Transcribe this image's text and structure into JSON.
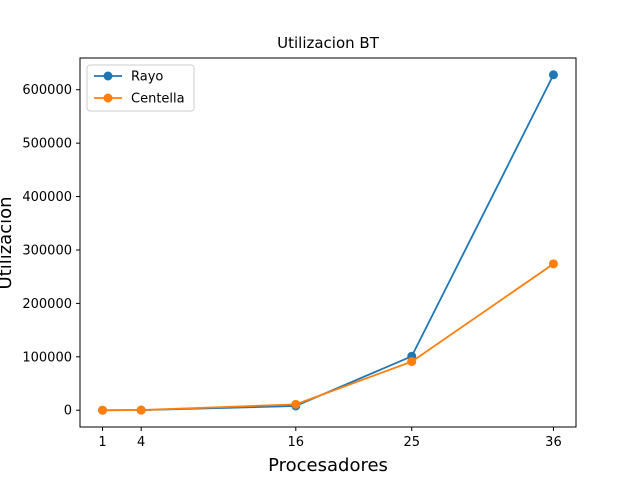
{
  "chart_data": {
    "type": "line",
    "title": "Utilizacion BT",
    "xlabel": "Procesadores",
    "ylabel": "Utilizacion",
    "x": [
      1,
      4,
      16,
      25,
      36
    ],
    "x_ticks": [
      "1",
      "4",
      "16",
      "25",
      "36"
    ],
    "y_ticks": [
      "0",
      "100000",
      "200000",
      "300000",
      "400000",
      "500000",
      "600000"
    ],
    "xlim": [
      -0.75,
      37.75
    ],
    "ylim": [
      -31400,
      659400
    ],
    "grid": false,
    "legend_position": "top-left",
    "series": [
      {
        "name": "Rayo",
        "color": "#1f77b4",
        "values": [
          0,
          200,
          8000,
          101000,
          628000
        ]
      },
      {
        "name": "Centella",
        "color": "#ff7f0e",
        "values": [
          0,
          300,
          11000,
          91000,
          274000
        ]
      }
    ]
  }
}
